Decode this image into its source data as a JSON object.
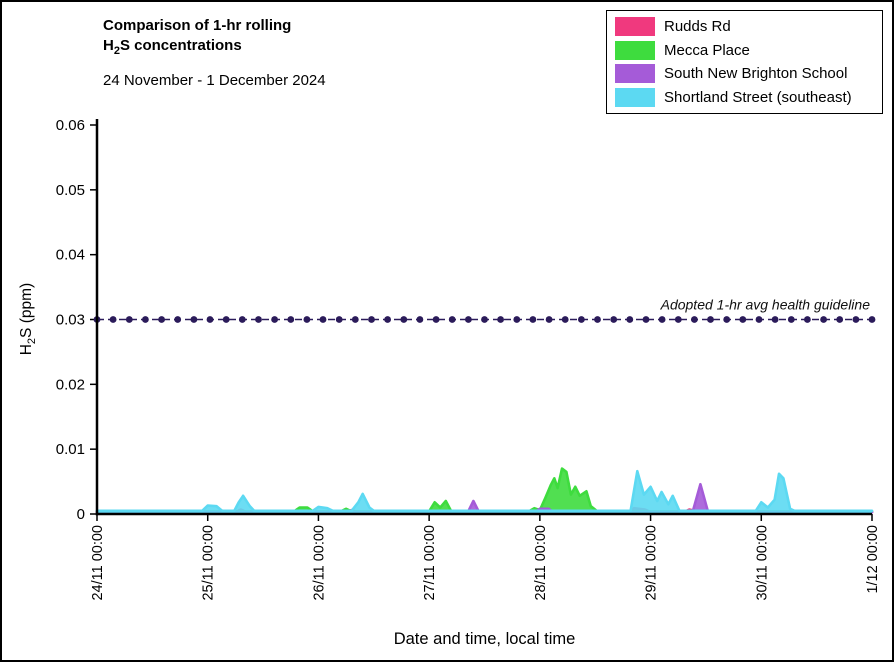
{
  "header": {
    "title_line1": "Comparison of 1-hr rolling",
    "title_h2s": {
      "h": "H",
      "sub": "2",
      "rest": "S concentrations"
    },
    "subtitle": "24 November - 1 December 2024"
  },
  "axes": {
    "y_label": {
      "h": "H",
      "sub": "2",
      "rest": "S (ppm)"
    },
    "x_label": "Date and time, local time"
  },
  "chart_data": {
    "type": "line",
    "title": "Comparison of 1-hr rolling H2S concentrations",
    "subtitle": "24 November - 1 December 2024",
    "xlabel": "Date and time, local time",
    "ylabel": "H2S (ppm)",
    "ylim": [
      0,
      0.06
    ],
    "x_unit": "days since 24/11 00:00",
    "grid": false,
    "legend_position": "top-right",
    "y_ticks": [
      {
        "value": 0,
        "label": "0"
      },
      {
        "value": 0.01,
        "label": "0.01"
      },
      {
        "value": 0.02,
        "label": "0.02"
      },
      {
        "value": 0.03,
        "label": "0.03"
      },
      {
        "value": 0.04,
        "label": "0.04"
      },
      {
        "value": 0.05,
        "label": "0.05"
      },
      {
        "value": 0.06,
        "label": "0.06"
      }
    ],
    "x_ticks": [
      {
        "day": 0,
        "label": "24/11 00:00"
      },
      {
        "day": 1,
        "label": "25/11 00:00"
      },
      {
        "day": 2,
        "label": "26/11 00:00"
      },
      {
        "day": 3,
        "label": "27/11 00:00"
      },
      {
        "day": 4,
        "label": "28/11 00:00"
      },
      {
        "day": 5,
        "label": "29/11 00:00"
      },
      {
        "day": 6,
        "label": "30/11 00:00"
      },
      {
        "day": 7,
        "label": "1/12 00:00"
      }
    ],
    "guideline": {
      "value": 0.03,
      "label": "Adopted 1-hr avg health guideline",
      "color": "#2B1B5A",
      "style": "dashed-with-dot-markers",
      "marker_count": 49
    },
    "series": [
      {
        "name": "Rudds Rd",
        "color": "#F0397E",
        "points": [
          [
            0,
            0.0003
          ],
          [
            1.25,
            0.0003
          ],
          [
            1.3,
            0.0007
          ],
          [
            1.35,
            0.0003
          ],
          [
            2.25,
            0.0003
          ],
          [
            2.3,
            0.0006
          ],
          [
            2.35,
            0.0003
          ],
          [
            4.8,
            0.0003
          ],
          [
            4.85,
            0.0009
          ],
          [
            4.95,
            0.0007
          ],
          [
            5.0,
            0.0003
          ],
          [
            5.3,
            0.0003
          ],
          [
            5.35,
            0.0007
          ],
          [
            5.45,
            0.0003
          ],
          [
            7,
            0.0003
          ]
        ]
      },
      {
        "name": "Mecca Place",
        "color": "#3EDC3E",
        "points": [
          [
            0,
            0.0004
          ],
          [
            1.78,
            0.0004
          ],
          [
            1.83,
            0.001
          ],
          [
            1.9,
            0.001
          ],
          [
            1.95,
            0.0004
          ],
          [
            2.2,
            0.0004
          ],
          [
            2.25,
            0.0008
          ],
          [
            2.3,
            0.0004
          ],
          [
            3.0,
            0.0004
          ],
          [
            3.05,
            0.0018
          ],
          [
            3.1,
            0.001
          ],
          [
            3.15,
            0.002
          ],
          [
            3.2,
            0.0004
          ],
          [
            3.9,
            0.0004
          ],
          [
            3.95,
            0.0009
          ],
          [
            4.0,
            0.0006
          ],
          [
            4.05,
            0.0025
          ],
          [
            4.1,
            0.0045
          ],
          [
            4.13,
            0.0055
          ],
          [
            4.16,
            0.004
          ],
          [
            4.2,
            0.007
          ],
          [
            4.24,
            0.0065
          ],
          [
            4.28,
            0.003
          ],
          [
            4.32,
            0.0042
          ],
          [
            4.36,
            0.0028
          ],
          [
            4.42,
            0.0035
          ],
          [
            4.46,
            0.0012
          ],
          [
            4.52,
            0.0004
          ],
          [
            7,
            0.0004
          ]
        ]
      },
      {
        "name": "South New Brighton School",
        "color": "#A55BD8",
        "points": [
          [
            0,
            0.0003
          ],
          [
            3.35,
            0.0003
          ],
          [
            3.4,
            0.002
          ],
          [
            3.45,
            0.0003
          ],
          [
            3.95,
            0.0003
          ],
          [
            4.0,
            0.0008
          ],
          [
            4.08,
            0.0008
          ],
          [
            4.12,
            0.0003
          ],
          [
            5.38,
            0.0003
          ],
          [
            5.45,
            0.0046
          ],
          [
            5.52,
            0.0003
          ],
          [
            7,
            0.0003
          ]
        ]
      },
      {
        "name": "Shortland Street (southeast)",
        "color": "#5CD9F2",
        "points": [
          [
            0,
            0.0005
          ],
          [
            0.95,
            0.0005
          ],
          [
            1.0,
            0.0013
          ],
          [
            1.08,
            0.0012
          ],
          [
            1.13,
            0.0005
          ],
          [
            1.24,
            0.0005
          ],
          [
            1.28,
            0.0018
          ],
          [
            1.32,
            0.0028
          ],
          [
            1.38,
            0.0012
          ],
          [
            1.42,
            0.0005
          ],
          [
            1.95,
            0.0005
          ],
          [
            2.0,
            0.0011
          ],
          [
            2.08,
            0.0009
          ],
          [
            2.13,
            0.0005
          ],
          [
            2.3,
            0.0005
          ],
          [
            2.36,
            0.0018
          ],
          [
            2.4,
            0.0031
          ],
          [
            2.46,
            0.001
          ],
          [
            2.5,
            0.0005
          ],
          [
            4.82,
            0.0005
          ],
          [
            4.88,
            0.0066
          ],
          [
            4.94,
            0.003
          ],
          [
            5.0,
            0.0042
          ],
          [
            5.06,
            0.002
          ],
          [
            5.1,
            0.0034
          ],
          [
            5.16,
            0.0015
          ],
          [
            5.2,
            0.0028
          ],
          [
            5.26,
            0.0005
          ],
          [
            5.95,
            0.0005
          ],
          [
            6.0,
            0.0018
          ],
          [
            6.06,
            0.001
          ],
          [
            6.12,
            0.0022
          ],
          [
            6.16,
            0.0062
          ],
          [
            6.2,
            0.0055
          ],
          [
            6.26,
            0.0008
          ],
          [
            6.3,
            0.0005
          ],
          [
            7,
            0.0005
          ]
        ]
      }
    ]
  }
}
